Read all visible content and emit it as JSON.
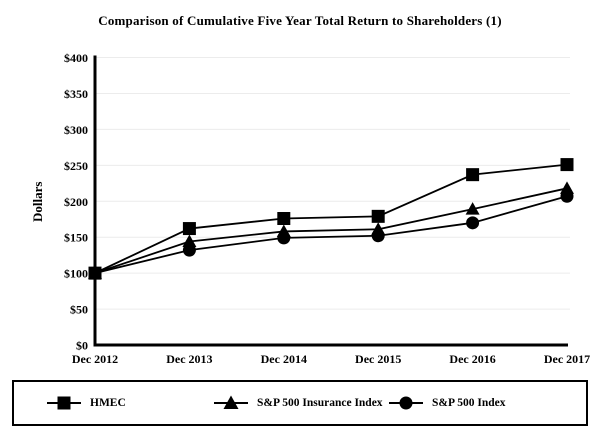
{
  "chart_data": {
    "type": "line",
    "title": "Comparison of Cumulative Five Year Total Return to Shareholders (1)",
    "ylabel": "Dollars",
    "xlabel": "",
    "categories": [
      "Dec 2012",
      "Dec 2013",
      "Dec 2014",
      "Dec 2015",
      "Dec 2016",
      "Dec 2017"
    ],
    "series": [
      {
        "name": "HMEC",
        "marker": "square",
        "values": [
          100,
          162,
          176,
          179,
          237,
          251
        ]
      },
      {
        "name": "S&P 500 Insurance Index",
        "marker": "triangle",
        "values": [
          100,
          144,
          158,
          161,
          189,
          218
        ]
      },
      {
        "name": "S&P 500 Index",
        "marker": "circle",
        "values": [
          100,
          132,
          149,
          152,
          170,
          207
        ]
      }
    ],
    "ylim": [
      0,
      400
    ],
    "ytick_step": 50,
    "ytick_labels": [
      "$0",
      "$50",
      "$100",
      "$150",
      "$200",
      "$250",
      "$300",
      "$350",
      "$400"
    ],
    "grid": true,
    "legend_position": "bottom",
    "colors": {
      "line": "#000000",
      "grid": "#ececec",
      "background": "#ffffff",
      "text": "#000000"
    }
  }
}
